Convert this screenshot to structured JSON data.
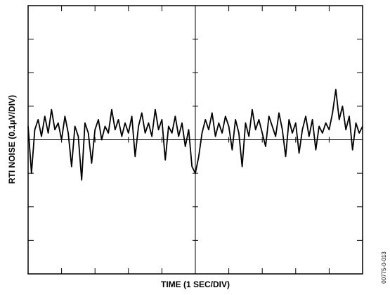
{
  "chart_data": {
    "type": "line",
    "x_label": "TIME (1 SEC/DIV)",
    "y_label": "RTI NOISE (0.1µV/DIV)",
    "figure_id": "00775-0-013",
    "xlim": [
      0,
      10
    ],
    "ylim": [
      -4,
      4
    ],
    "xticks": [
      0,
      1,
      2,
      3,
      4,
      5,
      6,
      7,
      8,
      9,
      10
    ],
    "yticks": [
      -4,
      -3,
      -2,
      -1,
      0,
      1,
      2,
      3,
      4
    ],
    "color": "#000000",
    "x": [
      0,
      0.1,
      0.2,
      0.3,
      0.4,
      0.5,
      0.6,
      0.7,
      0.8,
      0.9,
      1,
      1.1,
      1.2,
      1.3,
      1.4,
      1.5,
      1.6,
      1.7,
      1.8,
      1.9,
      2,
      2.1,
      2.2,
      2.3,
      2.4,
      2.5,
      2.6,
      2.7,
      2.8,
      2.9,
      3,
      3.1,
      3.2,
      3.3,
      3.4,
      3.5,
      3.6,
      3.7,
      3.8,
      3.9,
      4,
      4.1,
      4.2,
      4.3,
      4.4,
      4.5,
      4.6,
      4.7,
      4.8,
      4.9,
      5,
      5.1,
      5.2,
      5.3,
      5.4,
      5.5,
      5.6,
      5.7,
      5.8,
      5.9,
      6,
      6.1,
      6.2,
      6.3,
      6.4,
      6.5,
      6.6,
      6.7,
      6.8,
      6.9,
      7,
      7.1,
      7.2,
      7.3,
      7.4,
      7.5,
      7.6,
      7.7,
      7.8,
      7.9,
      8,
      8.1,
      8.2,
      8.3,
      8.4,
      8.5,
      8.6,
      8.7,
      8.8,
      8.9,
      9,
      9.1,
      9.2,
      9.3,
      9.4,
      9.5,
      9.6,
      9.7,
      9.8,
      9.9,
      10
    ],
    "values": [
      0.4,
      -1.0,
      0.3,
      0.6,
      0.1,
      0.7,
      0.2,
      0.9,
      0.3,
      0.5,
      0.0,
      0.7,
      0.2,
      -0.8,
      0.4,
      0.1,
      -1.2,
      0.5,
      0.2,
      -0.7,
      0.3,
      0.6,
      0.0,
      0.4,
      0.2,
      0.9,
      0.3,
      0.6,
      0.1,
      0.5,
      0.2,
      0.7,
      -0.5,
      0.4,
      0.8,
      0.2,
      0.5,
      0.1,
      0.9,
      0.3,
      0.6,
      -0.6,
      0.4,
      0.2,
      0.7,
      0.1,
      0.5,
      -0.2,
      0.3,
      -0.8,
      -1.0,
      -0.5,
      0.2,
      0.6,
      0.3,
      0.8,
      0.1,
      0.5,
      0.2,
      0.7,
      0.4,
      -0.3,
      0.6,
      0.2,
      -0.8,
      0.5,
      0.1,
      0.9,
      0.3,
      0.6,
      0.2,
      -0.2,
      0.7,
      0.4,
      0.1,
      0.8,
      0.3,
      -0.5,
      0.6,
      0.2,
      0.5,
      -0.4,
      0.3,
      0.7,
      0.1,
      0.6,
      -0.3,
      0.4,
      0.2,
      0.5,
      0.3,
      0.8,
      1.5,
      0.6,
      1.0,
      0.3,
      0.7,
      -0.3,
      0.5,
      0.2,
      0.4
    ]
  }
}
